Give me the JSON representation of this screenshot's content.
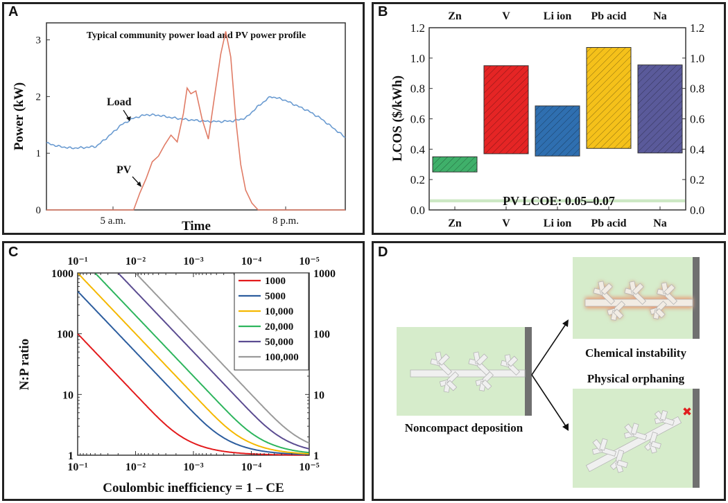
{
  "panels": {
    "a": {
      "label": "A"
    },
    "b": {
      "label": "B"
    },
    "c": {
      "label": "C"
    },
    "d": {
      "label": "D"
    }
  },
  "chart_data": [
    {
      "id": "A",
      "type": "line",
      "title": "Typical community power load and PV power profile",
      "xlabel": "Time",
      "ylabel": "Power (kW)",
      "xtick_labels": [
        "5 a.m.",
        "8 p.m."
      ],
      "yticks": [
        0,
        1,
        2,
        3
      ],
      "ylim": [
        0,
        3.3
      ],
      "xlim": [
        0,
        24
      ],
      "series": [
        {
          "name": "Load",
          "color": "#6a9bd1",
          "x": [
            0,
            1,
            2,
            3,
            4,
            5,
            6,
            7,
            8,
            9,
            10,
            11,
            12,
            13,
            14,
            15,
            16,
            17,
            18,
            19,
            20,
            21,
            22,
            23,
            24
          ],
          "y": [
            1.18,
            1.12,
            1.09,
            1.1,
            1.12,
            1.3,
            1.5,
            1.62,
            1.68,
            1.67,
            1.63,
            1.6,
            1.58,
            1.56,
            1.56,
            1.57,
            1.62,
            1.83,
            2.0,
            1.95,
            1.85,
            1.75,
            1.62,
            1.45,
            1.28
          ]
        },
        {
          "name": "PV",
          "color": "#e07b65",
          "x": [
            0,
            7.0,
            7.5,
            8.0,
            8.5,
            9.0,
            9.5,
            10.0,
            10.5,
            11.0,
            11.3,
            11.6,
            12.0,
            12.5,
            13.0,
            13.5,
            14.0,
            14.4,
            14.8,
            15.2,
            15.6,
            16.0,
            16.5,
            17.0,
            17.5,
            24
          ],
          "y": [
            0,
            0,
            0.3,
            0.55,
            0.85,
            0.95,
            1.15,
            1.32,
            1.2,
            1.7,
            2.15,
            2.05,
            2.1,
            1.6,
            1.25,
            2.0,
            2.75,
            3.15,
            2.7,
            1.6,
            0.8,
            0.35,
            0.12,
            0,
            0,
            0
          ]
        }
      ],
      "annotations": [
        {
          "text": "Load",
          "color": "#6a9bd1"
        },
        {
          "text": "PV",
          "color": "#e07b65"
        }
      ]
    },
    {
      "id": "B",
      "type": "bar",
      "ylabel": "LCOS ($/kWh)",
      "categories": [
        "Zn",
        "V",
        "Li ion",
        "Pb  acid",
        "Na"
      ],
      "ranges": [
        [
          0.25,
          0.35
        ],
        [
          0.37,
          0.95
        ],
        [
          0.355,
          0.685
        ],
        [
          0.405,
          1.07
        ],
        [
          0.375,
          0.955
        ]
      ],
      "colors": [
        "#3fb06a",
        "#e52525",
        "#2f6fb0",
        "#f5c11a",
        "#5a5a9a"
      ],
      "yticks": [
        0.0,
        0.2,
        0.4,
        0.6,
        0.8,
        1.0,
        1.2
      ],
      "ytick_labels": [
        "0.0",
        "0.2",
        "0.4",
        "0.6",
        "0.8",
        "1.0",
        "1.2"
      ],
      "ylim": [
        0,
        1.2
      ],
      "band": {
        "label": "PV LCOE: 0.05–0.07",
        "range": [
          0.05,
          0.07
        ],
        "color": "#cce8c4"
      }
    },
    {
      "id": "C",
      "type": "line",
      "xscale": "log",
      "yscale": "log",
      "xlabel": "Coulombic inefficiency = 1 – CE",
      "ylabel": "N:P ratio",
      "xlim": [
        0.1,
        1e-05
      ],
      "ylim": [
        1,
        1000
      ],
      "xtick_labels": [
        "10⁻¹",
        "10⁻²",
        "10⁻³",
        "10⁻⁴",
        "10⁻⁵"
      ],
      "ytick_labels": [
        "1",
        "10",
        "100",
        "1000"
      ],
      "series": [
        {
          "name": "1000",
          "cycles": 1000,
          "color": "#e31a1c"
        },
        {
          "name": "5000",
          "cycles": 5000,
          "color": "#2c5d9e"
        },
        {
          "name": "10,000",
          "cycles": 10000,
          "color": "#f5b800"
        },
        {
          "name": "20,000",
          "cycles": 20000,
          "color": "#2db55d"
        },
        {
          "name": "50,000",
          "cycles": 50000,
          "color": "#5b4c91"
        },
        {
          "name": "100,000",
          "cycles": 100000,
          "color": "#9a9a9a"
        }
      ]
    }
  ],
  "diagram_d": {
    "left_caption": "Noncompact deposition",
    "top_caption": "Chemical instability",
    "bottom_caption": "Physical orphaning",
    "bg_color": "#d6eccb",
    "electrode_color": "#707070",
    "x_mark": "✖"
  }
}
